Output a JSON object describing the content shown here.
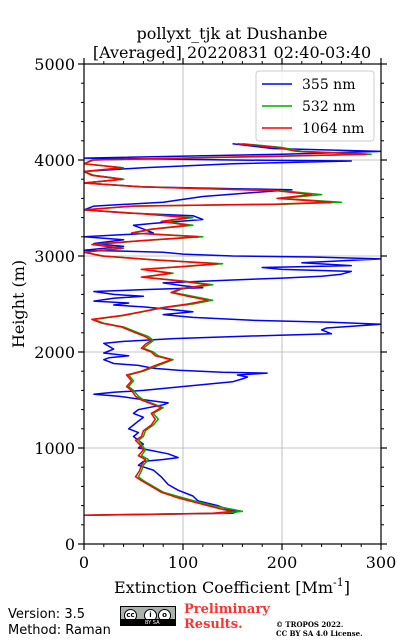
{
  "chart_data": {
    "type": "line",
    "title": "pollyxt_tjk at Dushanbe",
    "subtitle": "[Averaged] 20220831 02:40-03:40",
    "xlabel": "Extinction Coefficient [Mm",
    "xlabel_exp": "-1",
    "xlabel_close": "]",
    "ylabel": "Height (m)",
    "xlim": [
      0,
      300
    ],
    "ylim": [
      0,
      5000
    ],
    "xticks": [
      "0",
      "100",
      "200",
      "300"
    ],
    "yticks": [
      "0",
      "1000",
      "2000",
      "3000",
      "4000",
      "5000"
    ],
    "grid": true,
    "legend_position": "top-right",
    "series": [
      {
        "name": "355 nm",
        "color": "#0000ff",
        "points": [
          [
            0,
            300
          ],
          [
            150,
            320
          ],
          [
            155,
            340
          ],
          [
            145,
            360
          ],
          [
            135,
            400
          ],
          [
            115,
            450
          ],
          [
            110,
            500
          ],
          [
            95,
            560
          ],
          [
            85,
            620
          ],
          [
            78,
            700
          ],
          [
            70,
            770
          ],
          [
            55,
            820
          ],
          [
            60,
            860
          ],
          [
            80,
            880
          ],
          [
            95,
            900
          ],
          [
            85,
            940
          ],
          [
            70,
            970
          ],
          [
            55,
            1000
          ],
          [
            60,
            1040
          ],
          [
            55,
            1080
          ],
          [
            50,
            1120
          ],
          [
            55,
            1160
          ],
          [
            45,
            1200
          ],
          [
            50,
            1240
          ],
          [
            55,
            1280
          ],
          [
            60,
            1320
          ],
          [
            50,
            1360
          ],
          [
            55,
            1400
          ],
          [
            70,
            1430
          ],
          [
            80,
            1450
          ],
          [
            85,
            1470
          ],
          [
            70,
            1490
          ],
          [
            55,
            1510
          ],
          [
            35,
            1540
          ],
          [
            10,
            1560
          ],
          [
            30,
            1580
          ],
          [
            60,
            1600
          ],
          [
            90,
            1630
          ],
          [
            120,
            1660
          ],
          [
            150,
            1690
          ],
          [
            160,
            1720
          ],
          [
            165,
            1740
          ],
          [
            155,
            1760
          ],
          [
            185,
            1780
          ],
          [
            140,
            1790
          ],
          [
            95,
            1810
          ],
          [
            70,
            1830
          ],
          [
            55,
            1860
          ],
          [
            30,
            1880
          ],
          [
            25,
            1900
          ],
          [
            20,
            1920
          ],
          [
            25,
            1940
          ],
          [
            45,
            1960
          ],
          [
            20,
            1990
          ],
          [
            30,
            2030
          ],
          [
            25,
            2060
          ],
          [
            20,
            2090
          ],
          [
            40,
            2110
          ],
          [
            90,
            2140
          ],
          [
            180,
            2170
          ],
          [
            250,
            2190
          ],
          [
            245,
            2210
          ],
          [
            240,
            2230
          ],
          [
            245,
            2250
          ],
          [
            300,
            2290
          ],
          [
            250,
            2310
          ],
          [
            170,
            2330
          ],
          [
            110,
            2360
          ],
          [
            80,
            2390
          ],
          [
            110,
            2420
          ],
          [
            80,
            2450
          ],
          [
            60,
            2470
          ],
          [
            30,
            2490
          ],
          [
            45,
            2510
          ],
          [
            10,
            2530
          ],
          [
            30,
            2560
          ],
          [
            60,
            2580
          ],
          [
            30,
            2600
          ],
          [
            10,
            2630
          ],
          [
            60,
            2650
          ],
          [
            120,
            2670
          ],
          [
            100,
            2690
          ],
          [
            80,
            2720
          ],
          [
            150,
            2750
          ],
          [
            200,
            2770
          ],
          [
            240,
            2790
          ],
          [
            260,
            2810
          ],
          [
            270,
            2840
          ],
          [
            200,
            2860
          ],
          [
            180,
            2880
          ],
          [
            270,
            2900
          ],
          [
            220,
            2930
          ],
          [
            300,
            2970
          ],
          [
            230,
            2990
          ],
          [
            150,
            3000
          ],
          [
            100,
            3020
          ],
          [
            80,
            3040
          ],
          [
            0,
            3060
          ],
          [
            40,
            3100
          ],
          [
            10,
            3130
          ],
          [
            40,
            3170
          ],
          [
            0,
            3200
          ],
          [
            70,
            3240
          ],
          [
            60,
            3280
          ],
          [
            50,
            3320
          ],
          [
            70,
            3340
          ],
          [
            120,
            3380
          ],
          [
            110,
            3420
          ],
          [
            40,
            3450
          ],
          [
            0,
            3480
          ],
          [
            10,
            3520
          ],
          [
            80,
            3560
          ],
          [
            120,
            3620
          ],
          [
            170,
            3660
          ],
          [
            210,
            3690
          ],
          [
            60,
            3720
          ],
          [
            0,
            3760
          ],
          [
            40,
            3800
          ],
          [
            10,
            3840
          ],
          [
            0,
            3880
          ],
          [
            60,
            3920
          ],
          [
            150,
            3960
          ],
          [
            270,
            3990
          ],
          [
            150,
            4000
          ],
          [
            0,
            4020
          ],
          [
            200,
            4060
          ],
          [
            300,
            4090
          ],
          [
            190,
            4120
          ],
          [
            150,
            4170
          ]
        ]
      },
      {
        "name": "532 nm",
        "color": "#00aa00",
        "points": [
          [
            0,
            300
          ],
          [
            140,
            320
          ],
          [
            160,
            340
          ],
          [
            150,
            360
          ],
          [
            130,
            400
          ],
          [
            115,
            440
          ],
          [
            100,
            480
          ],
          [
            80,
            540
          ],
          [
            70,
            600
          ],
          [
            60,
            660
          ],
          [
            55,
            700
          ],
          [
            58,
            760
          ],
          [
            60,
            820
          ],
          [
            65,
            880
          ],
          [
            58,
            920
          ],
          [
            62,
            980
          ],
          [
            58,
            1040
          ],
          [
            55,
            1080
          ],
          [
            60,
            1120
          ],
          [
            62,
            1180
          ],
          [
            70,
            1240
          ],
          [
            75,
            1300
          ],
          [
            70,
            1360
          ],
          [
            80,
            1420
          ],
          [
            70,
            1460
          ],
          [
            60,
            1500
          ],
          [
            55,
            1540
          ],
          [
            50,
            1600
          ],
          [
            45,
            1640
          ],
          [
            50,
            1700
          ],
          [
            45,
            1760
          ],
          [
            60,
            1800
          ],
          [
            75,
            1860
          ],
          [
            90,
            1920
          ],
          [
            75,
            1960
          ],
          [
            70,
            2000
          ],
          [
            60,
            2040
          ],
          [
            65,
            2080
          ],
          [
            70,
            2120
          ],
          [
            65,
            2160
          ],
          [
            55,
            2200
          ],
          [
            40,
            2260
          ],
          [
            20,
            2300
          ],
          [
            10,
            2340
          ],
          [
            40,
            2380
          ],
          [
            60,
            2420
          ],
          [
            80,
            2460
          ],
          [
            110,
            2500
          ],
          [
            130,
            2540
          ],
          [
            110,
            2580
          ],
          [
            90,
            2620
          ],
          [
            100,
            2660
          ],
          [
            130,
            2700
          ],
          [
            100,
            2740
          ],
          [
            60,
            2780
          ],
          [
            90,
            2820
          ],
          [
            60,
            2860
          ],
          [
            100,
            2890
          ],
          [
            140,
            2920
          ],
          [
            70,
            2960
          ],
          [
            20,
            3000
          ],
          [
            0,
            3040
          ],
          [
            40,
            3080
          ],
          [
            10,
            3120
          ],
          [
            60,
            3160
          ],
          [
            120,
            3200
          ],
          [
            50,
            3240
          ],
          [
            70,
            3280
          ],
          [
            110,
            3320
          ],
          [
            80,
            3360
          ],
          [
            110,
            3400
          ],
          [
            60,
            3440
          ],
          [
            0,
            3480
          ],
          [
            50,
            3520
          ],
          [
            200,
            3540
          ],
          [
            260,
            3560
          ],
          [
            200,
            3600
          ],
          [
            240,
            3640
          ],
          [
            200,
            3680
          ],
          [
            60,
            3720
          ],
          [
            0,
            3760
          ],
          [
            40,
            3800
          ],
          [
            10,
            3840
          ],
          [
            0,
            3880
          ],
          [
            40,
            3920
          ],
          [
            0,
            3960
          ],
          [
            10,
            4000
          ],
          [
            200,
            4040
          ],
          [
            290,
            4060
          ],
          [
            220,
            4090
          ],
          [
            200,
            4130
          ],
          [
            160,
            4170
          ]
        ]
      },
      {
        "name": "1064 nm",
        "color": "#ff0000",
        "points": [
          [
            0,
            300
          ],
          [
            130,
            320
          ],
          [
            150,
            340
          ],
          [
            140,
            360
          ],
          [
            125,
            400
          ],
          [
            110,
            440
          ],
          [
            95,
            480
          ],
          [
            78,
            540
          ],
          [
            68,
            600
          ],
          [
            58,
            660
          ],
          [
            52,
            700
          ],
          [
            56,
            760
          ],
          [
            58,
            820
          ],
          [
            62,
            880
          ],
          [
            55,
            920
          ],
          [
            60,
            980
          ],
          [
            56,
            1040
          ],
          [
            52,
            1080
          ],
          [
            58,
            1120
          ],
          [
            60,
            1180
          ],
          [
            68,
            1240
          ],
          [
            72,
            1300
          ],
          [
            68,
            1360
          ],
          [
            78,
            1420
          ],
          [
            68,
            1460
          ],
          [
            58,
            1500
          ],
          [
            52,
            1540
          ],
          [
            48,
            1600
          ],
          [
            43,
            1640
          ],
          [
            48,
            1700
          ],
          [
            43,
            1760
          ],
          [
            58,
            1800
          ],
          [
            72,
            1860
          ],
          [
            88,
            1920
          ],
          [
            72,
            1960
          ],
          [
            68,
            2000
          ],
          [
            58,
            2040
          ],
          [
            62,
            2080
          ],
          [
            68,
            2120
          ],
          [
            62,
            2160
          ],
          [
            52,
            2200
          ],
          [
            38,
            2260
          ],
          [
            18,
            2300
          ],
          [
            8,
            2340
          ],
          [
            38,
            2380
          ],
          [
            58,
            2420
          ],
          [
            78,
            2460
          ],
          [
            105,
            2500
          ],
          [
            125,
            2540
          ],
          [
            105,
            2580
          ],
          [
            88,
            2620
          ],
          [
            98,
            2660
          ],
          [
            125,
            2700
          ],
          [
            98,
            2740
          ],
          [
            58,
            2780
          ],
          [
            88,
            2820
          ],
          [
            58,
            2860
          ],
          [
            98,
            2890
          ],
          [
            135,
            2920
          ],
          [
            68,
            2960
          ],
          [
            18,
            3000
          ],
          [
            0,
            3040
          ],
          [
            38,
            3080
          ],
          [
            8,
            3120
          ],
          [
            58,
            3160
          ],
          [
            115,
            3200
          ],
          [
            48,
            3240
          ],
          [
            68,
            3280
          ],
          [
            105,
            3320
          ],
          [
            78,
            3360
          ],
          [
            105,
            3400
          ],
          [
            58,
            3440
          ],
          [
            0,
            3480
          ],
          [
            48,
            3520
          ],
          [
            190,
            3540
          ],
          [
            250,
            3560
          ],
          [
            195,
            3600
          ],
          [
            230,
            3640
          ],
          [
            195,
            3680
          ],
          [
            58,
            3720
          ],
          [
            0,
            3760
          ],
          [
            38,
            3800
          ],
          [
            8,
            3840
          ],
          [
            0,
            3880
          ],
          [
            38,
            3920
          ],
          [
            0,
            3960
          ],
          [
            8,
            4000
          ],
          [
            190,
            4040
          ],
          [
            285,
            4060
          ],
          [
            215,
            4090
          ],
          [
            195,
            4130
          ],
          [
            155,
            4170
          ]
        ]
      }
    ]
  },
  "footer": {
    "version": "Version: 3.5",
    "method": "Method: Raman",
    "preliminary_line1": "Preliminary",
    "preliminary_line2": "Results.",
    "copyright_line1": "© TROPOS 2022.",
    "copyright_line2": "CC BY SA 4.0 License.",
    "badge_text": "BY   SA"
  }
}
